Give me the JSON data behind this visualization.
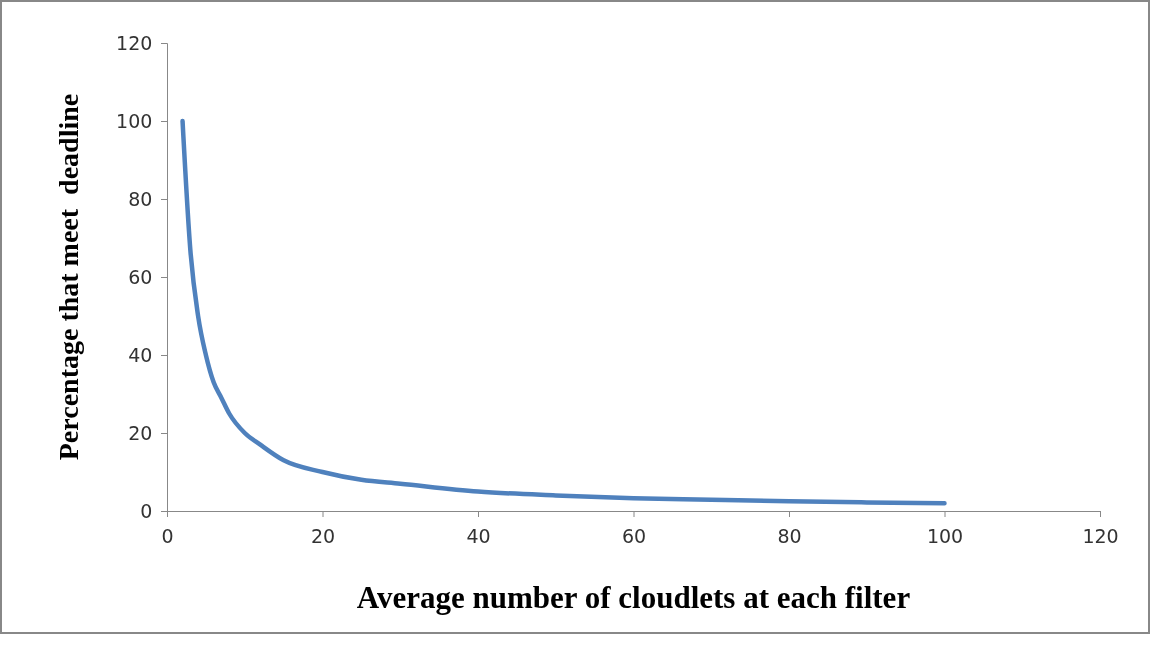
{
  "chart_data": {
    "type": "line",
    "xlabel": "Average number of cloudlets at each filter",
    "ylabel": "Percentage that meet  deadline",
    "x": [
      2,
      3,
      4,
      5,
      6,
      7,
      8,
      10,
      12,
      15,
      20,
      25,
      30,
      40,
      50,
      60,
      70,
      80,
      90,
      100
    ],
    "series": [
      {
        "color": "#4f81bd",
        "values": [
          100,
          67,
          50,
          40,
          33,
          29,
          25,
          20,
          17,
          13,
          10,
          8,
          7,
          5,
          4,
          3.3,
          2.9,
          2.5,
          2.2,
          2
        ]
      }
    ],
    "xlim": [
      0,
      120
    ],
    "xticks": [
      0,
      20,
      40,
      60,
      80,
      100,
      120
    ],
    "ylim": [
      0,
      120
    ],
    "yticks": [
      0,
      20,
      40,
      60,
      80,
      100,
      120
    ],
    "grid": false,
    "marker": "none",
    "line_style": "solid"
  }
}
